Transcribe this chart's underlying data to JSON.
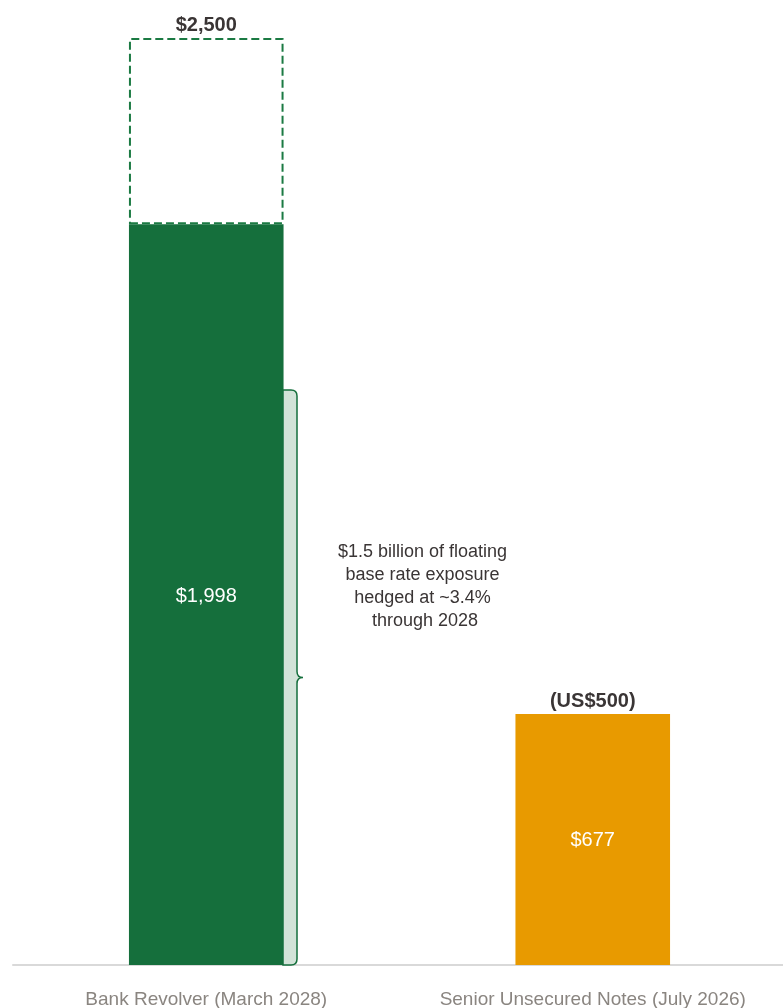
{
  "chart_data": {
    "type": "bar",
    "stacked": true,
    "categories": [
      "Bank Revolver (March 2028)",
      "Senior Unsecured Notes (July 2026)"
    ],
    "series": [
      {
        "values": [
          1998,
          677
        ],
        "colors": [
          "#156f3c",
          "#e89a00"
        ],
        "value_labels": [
          "$1,998",
          "$677"
        ]
      },
      {
        "color": "#1b7a43",
        "values": [
          502,
          null
        ],
        "line_style": "dashed"
      }
    ],
    "totals": [
      "$2,500",
      "(US$500)"
    ],
    "annotations": [
      "$1.5 billion of floating base rate exposure hedged at ~3.4% through 2028"
    ],
    "legend": false
  }
}
